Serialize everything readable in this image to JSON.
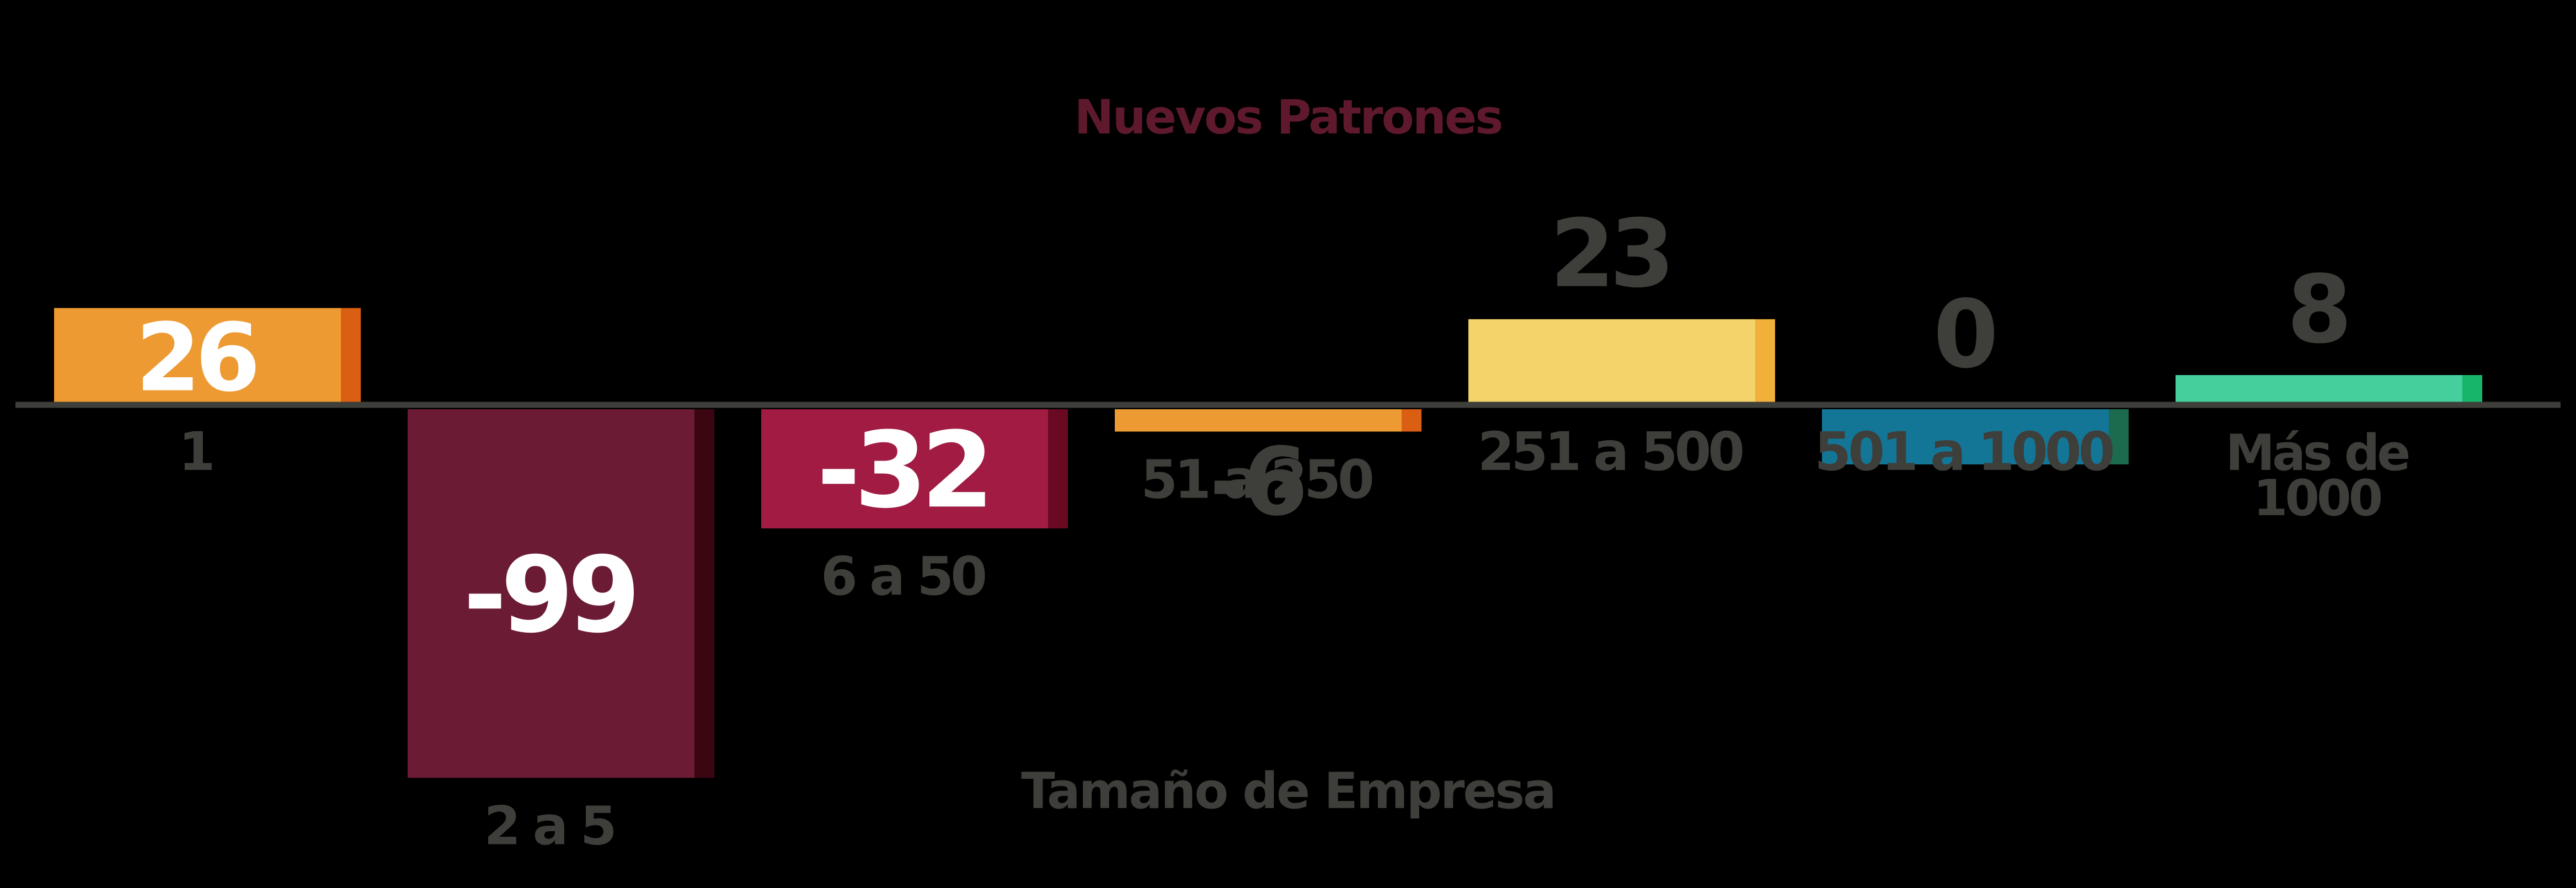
{
  "chart_data": {
    "type": "bar",
    "title": "Nuevos Patrones",
    "xlabel": "Tamaño de Empresa",
    "ylabel": "",
    "categories": [
      "1",
      "2 a 5",
      "6 a 50",
      "51 a 250",
      "251 a 500",
      "501 a 1000",
      "Más de 1000"
    ],
    "values": [
      26,
      -99,
      -32,
      -6,
      23,
      0,
      8
    ],
    "bar_colors": [
      "#ED9A32",
      "#6B1B33",
      "#A11B42",
      "#ED9A32",
      "#F4D36A",
      "#137696",
      "#44CF9C"
    ],
    "edge_colors": [
      "#DA5F12",
      "#3C0512",
      "#690A22",
      "#DA5F12",
      "#F0B03A",
      "#1C6B4F",
      "#17B569"
    ],
    "title_color": "#5E1A2C",
    "label_color": "#3E3E3A",
    "inside_value_color": "#FFFFFF",
    "ylim": [
      -99,
      26
    ],
    "grid": false,
    "legend": "none"
  }
}
